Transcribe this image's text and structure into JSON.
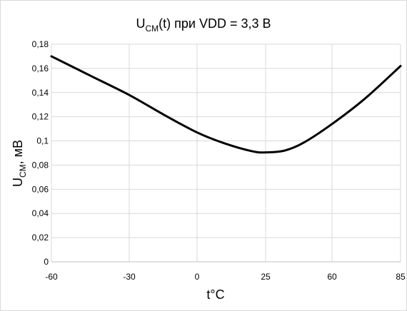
{
  "chart_data": {
    "type": "line",
    "title": {
      "main": "U",
      "sub": "CM",
      "rest": "(t) при VDD = 3,3 В"
    },
    "xlabel": "t°C",
    "ylabel": {
      "main": "U",
      "sub": "CM",
      "rest": ", мВ"
    },
    "x_ticks": [
      "-60",
      "-30",
      "0",
      "25",
      "60",
      "85"
    ],
    "y_ticks": [
      "0",
      "0,02",
      "0,04",
      "0,06",
      "0,08",
      "0,1",
      "0,12",
      "0,14",
      "0,16",
      "0,18"
    ],
    "ylim": [
      0,
      0.18
    ],
    "grid": true,
    "series": [
      {
        "color": "#000000",
        "points": [
          {
            "x": -60,
            "y": 0.17
          },
          {
            "x": -45,
            "y": 0.154
          },
          {
            "x": -30,
            "y": 0.138
          },
          {
            "x": -15,
            "y": 0.122
          },
          {
            "x": 0,
            "y": 0.107
          },
          {
            "x": 10,
            "y": 0.098
          },
          {
            "x": 20,
            "y": 0.0915
          },
          {
            "x": 25,
            "y": 0.0905
          },
          {
            "x": 35,
            "y": 0.092
          },
          {
            "x": 45,
            "y": 0.0985
          },
          {
            "x": 60,
            "y": 0.114
          },
          {
            "x": 72,
            "y": 0.135
          },
          {
            "x": 85,
            "y": 0.162
          }
        ]
      }
    ]
  }
}
